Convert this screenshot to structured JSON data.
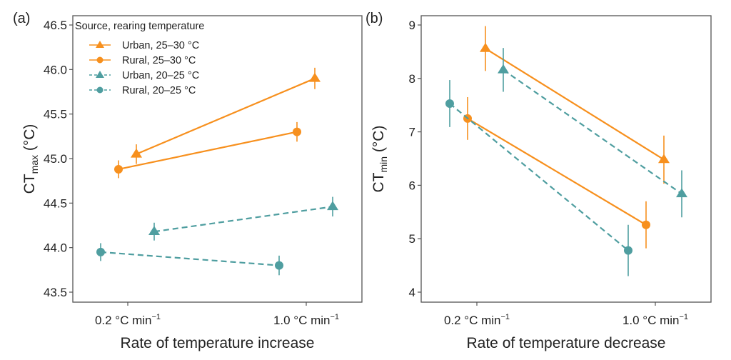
{
  "colors": {
    "orange": "#F7901E",
    "teal": "#4F9EA0",
    "axis": "#555555"
  },
  "legend": {
    "title": "Source, rearing temperature",
    "entries": [
      {
        "label": "Urban, 25–30 °C",
        "series": "urban_25_30"
      },
      {
        "label": "Rural, 25–30 °C",
        "series": "rural_25_30"
      },
      {
        "label": "Urban, 20–25 °C",
        "series": "urban_20_25"
      },
      {
        "label": "Rural, 20–25 °C",
        "series": "rural_20_25"
      }
    ]
  },
  "chart_data": [
    {
      "panel": "(a)",
      "type": "line",
      "title": "",
      "xlabel": "Rate of temperature increase",
      "ylabel": "CT",
      "ylabel_sub": "max",
      "ylabel_unit": " (°C)",
      "categories": [
        "0.2 °C min",
        "1.0 °C min"
      ],
      "category_superscript": "−1",
      "ylim": [
        43.5,
        46.5
      ],
      "yticks": [
        43.5,
        44.0,
        44.5,
        45.0,
        45.5,
        46.0,
        46.5
      ],
      "ytick_labels": [
        "43.5",
        "44.0",
        "44.5",
        "45.0",
        "45.5",
        "46.0",
        "46.5"
      ],
      "grid": false,
      "legend_position": "top-left",
      "series": [
        {
          "id": "urban_25_30",
          "name": "Urban, 25–30 °C",
          "marker": "triangle",
          "line": "solid",
          "color_key": "orange",
          "values": [
            45.05,
            45.9
          ],
          "errors": [
            0.11,
            0.12
          ]
        },
        {
          "id": "rural_25_30",
          "name": "Rural, 25–30 °C",
          "marker": "circle",
          "line": "solid",
          "color_key": "orange",
          "values": [
            44.88,
            45.3
          ],
          "errors": [
            0.1,
            0.11
          ]
        },
        {
          "id": "urban_20_25",
          "name": "Urban, 20–25 °C",
          "marker": "triangle",
          "line": "dashed",
          "color_key": "teal",
          "values": [
            44.18,
            44.46
          ],
          "errors": [
            0.1,
            0.11
          ]
        },
        {
          "id": "rural_20_25",
          "name": "Rural, 20–25 °C",
          "marker": "circle",
          "line": "dashed",
          "color_key": "teal",
          "values": [
            43.95,
            43.8
          ],
          "errors": [
            0.1,
            0.11
          ]
        }
      ]
    },
    {
      "panel": "(b)",
      "type": "line",
      "title": "",
      "xlabel": "Rate of temperature decrease",
      "ylabel": "CT",
      "ylabel_sub": "min",
      "ylabel_unit": " (°C)",
      "categories": [
        "0.2 °C min",
        "1.0 °C min"
      ],
      "category_superscript": "−1",
      "ylim": [
        3.8,
        9.2
      ],
      "yticks": [
        4,
        5,
        6,
        7,
        8,
        9
      ],
      "ytick_labels": [
        "4",
        "5",
        "6",
        "7",
        "8",
        "9"
      ],
      "grid": false,
      "legend_position": "none",
      "series": [
        {
          "id": "urban_25_30",
          "name": "Urban, 25–30 °C",
          "marker": "triangle",
          "line": "solid",
          "color_key": "orange",
          "values": [
            8.56,
            6.48
          ],
          "errors": [
            0.42,
            0.45
          ]
        },
        {
          "id": "rural_25_30",
          "name": "Rural, 25–30 °C",
          "marker": "circle",
          "line": "solid",
          "color_key": "orange",
          "values": [
            7.25,
            5.26
          ],
          "errors": [
            0.4,
            0.44
          ]
        },
        {
          "id": "urban_20_25",
          "name": "Urban, 20–25 °C",
          "marker": "triangle",
          "line": "dashed",
          "color_key": "teal",
          "values": [
            8.16,
            5.84
          ],
          "errors": [
            0.41,
            0.44
          ]
        },
        {
          "id": "rural_20_25",
          "name": "Rural, 20–25 °C",
          "marker": "circle",
          "line": "dashed",
          "color_key": "teal",
          "values": [
            7.53,
            4.78
          ],
          "errors": [
            0.44,
            0.48
          ]
        }
      ]
    }
  ]
}
